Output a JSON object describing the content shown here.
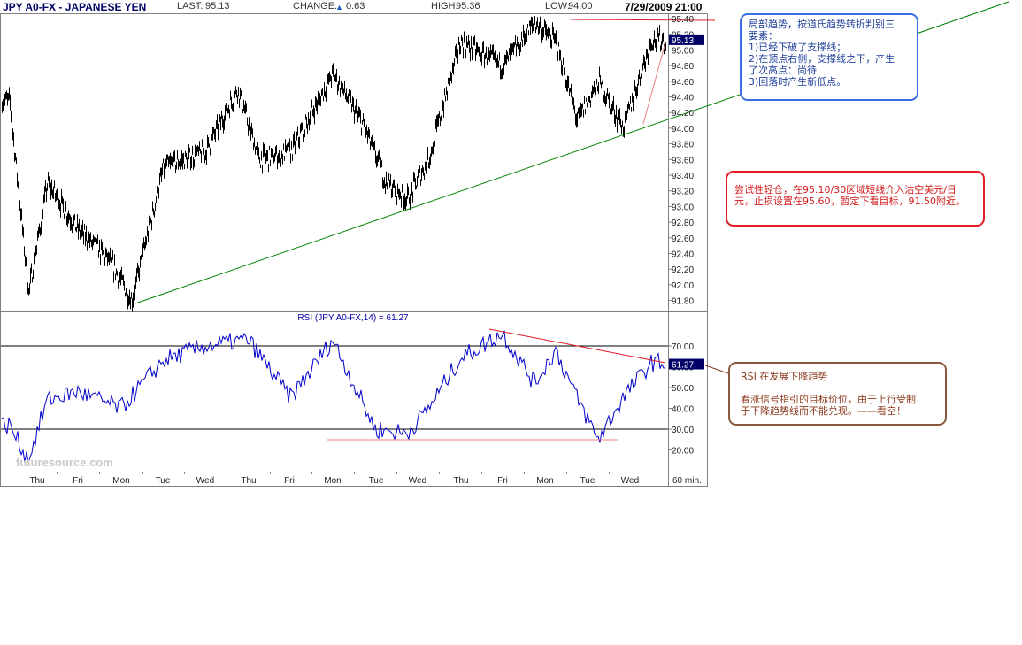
{
  "header": {
    "symbol": "JPY A0-FX - JAPANESE YEN",
    "last_label": "LAST:",
    "last_value": "95.13",
    "change_label": "CHANGE:",
    "change_value": "0.63",
    "high_label": "HIGH:",
    "high_value": "95.36",
    "low_label": "LOW:",
    "low_value": "94.00",
    "datetime": "7/29/2009 21:00"
  },
  "chart_data": [
    {
      "type": "bar",
      "title": "JPY A0-FX - JAPANESE YEN",
      "y_ticks": [
        "95.40",
        "95.20",
        "95.00",
        "94.80",
        "94.60",
        "94.40",
        "94.20",
        "94.00",
        "93.80",
        "93.60",
        "93.40",
        "93.20",
        "93.00",
        "92.80",
        "92.60",
        "92.40",
        "92.20",
        "92.00",
        "91.80"
      ],
      "ylim": [
        91.7,
        95.45
      ],
      "last_price_label": "95.13",
      "key_points": [
        {
          "day": "Thu",
          "price": 94.35
        },
        {
          "day": "Thu",
          "price": 91.9
        },
        {
          "day": "Thu",
          "price": 93.3
        },
        {
          "day": "Fri",
          "price": 92.7
        },
        {
          "day": "Mon",
          "price": 92.3
        },
        {
          "day": "Mon",
          "price": 91.8
        },
        {
          "day": "Tue",
          "price": 93.5
        },
        {
          "day": "Wed",
          "price": 93.7
        },
        {
          "day": "Thu",
          "price": 94.5
        },
        {
          "day": "Thu",
          "price": 93.6
        },
        {
          "day": "Fri",
          "price": 93.7
        },
        {
          "day": "Mon",
          "price": 94.7
        },
        {
          "day": "Tue",
          "price": 94.0
        },
        {
          "day": "Tue",
          "price": 93.3
        },
        {
          "day": "Wed",
          "price": 93.1
        },
        {
          "day": "Wed",
          "price": 93.6
        },
        {
          "day": "Thu",
          "price": 95.1
        },
        {
          "day": "Fri",
          "price": 94.8
        },
        {
          "day": "Mon",
          "price": 95.35
        },
        {
          "day": "Mon",
          "price": 95.1
        },
        {
          "day": "Tue",
          "price": 94.1
        },
        {
          "day": "Tue",
          "price": 94.6
        },
        {
          "day": "Wed",
          "price": 94.0
        },
        {
          "day": "Wed",
          "price": 95.13
        }
      ],
      "lines": [
        {
          "color": "#008000",
          "description": "green support trendline"
        },
        {
          "color": "#e01c24",
          "description": "red resistance at top"
        }
      ]
    },
    {
      "type": "line",
      "title": "RSI (JPY A0-FX,14) = 61.27",
      "y_ticks": [
        "70.00",
        "60.00",
        "50.00",
        "40.00",
        "30.00",
        "20.00"
      ],
      "ylim": [
        15,
        80
      ],
      "reference_lines": [
        70,
        30
      ],
      "last_value_label": "61.27",
      "series": [
        {
          "color": "#0000cc",
          "key_points": [
            {
              "day": "Thu",
              "rsi": 32
            },
            {
              "day": "Thu",
              "rsi": 15
            },
            {
              "day": "Thu",
              "rsi": 44
            },
            {
              "day": "Fri",
              "rsi": 48
            },
            {
              "day": "Mon",
              "rsi": 40
            },
            {
              "day": "Tue",
              "rsi": 63
            },
            {
              "day": "Wed",
              "rsi": 70
            },
            {
              "day": "Thu",
              "rsi": 73
            },
            {
              "day": "Fri",
              "rsi": 45
            },
            {
              "day": "Mon",
              "rsi": 73
            },
            {
              "day": "Tue",
              "rsi": 30
            },
            {
              "day": "Wed",
              "rsi": 28
            },
            {
              "day": "Wed",
              "rsi": 40
            },
            {
              "day": "Thu",
              "rsi": 64
            },
            {
              "day": "Fri",
              "rsi": 76
            },
            {
              "day": "Mon",
              "rsi": 52
            },
            {
              "day": "Mon",
              "rsi": 68
            },
            {
              "day": "Tue",
              "rsi": 45
            },
            {
              "day": "Tue",
              "rsi": 25
            },
            {
              "day": "Wed",
              "rsi": 45
            },
            {
              "day": "Wed",
              "rsi": 62
            }
          ]
        }
      ],
      "x_ticks": [
        "Thu",
        "Fri",
        "Mon",
        "Tue",
        "Wed",
        "Thu",
        "Fri",
        "Mon",
        "Tue",
        "Wed",
        "Thu",
        "Fri",
        "Mon",
        "Tue",
        "Wed"
      ],
      "x_unit": "60 min."
    }
  ],
  "watermark": "futuresource.com",
  "notes": {
    "note1": [
      "局部趋势，按道氏趋势转折判别三",
      "要素：",
      "1)已经下破了支撑线；",
      "2)在顶点右侧，支撑线之下，产生",
      "了次高点：尚待",
      "3)回落时产生新低点。"
    ],
    "note2": [
      "尝试性轻仓，在95.10/30区域短线介入沽空美元/日",
      "元，止损设置在95.60，暂定下看目标，91.50附近。"
    ],
    "note3_title": "RSI 在发展下降趋势",
    "note3": [
      "看涨信号指引的目标价位，由于上行受制",
      "于下降趋势线而不能兑现。——看空！"
    ]
  }
}
